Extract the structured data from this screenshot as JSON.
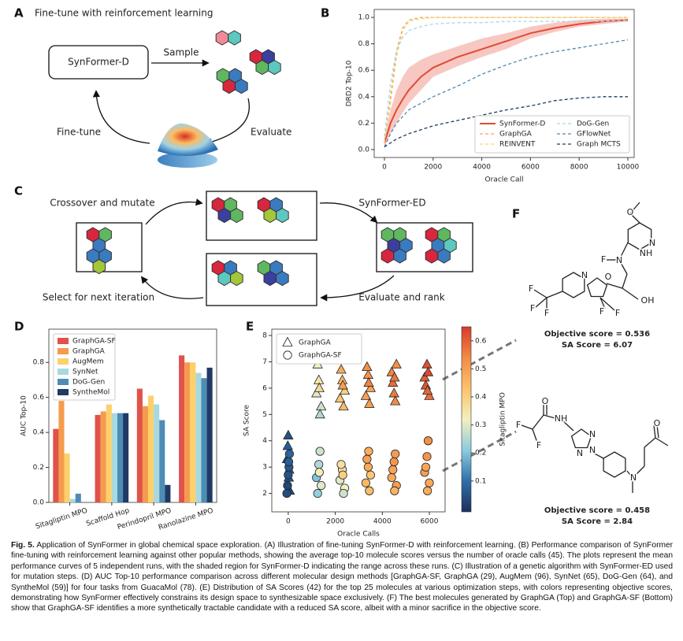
{
  "panels": {
    "A": {
      "label": "A",
      "title": "Fine-tune with reinforcement learning",
      "model": "SynFormer-D",
      "sample": "Sample",
      "evaluate": "Evaluate",
      "finetune": "Fine-tune"
    },
    "C": {
      "label": "C",
      "crossover": "Crossover and mutate",
      "synformer": "SynFormer-ED",
      "evaluate": "Evaluate and rank",
      "select": "Select for next iteration"
    },
    "F": {
      "label": "F",
      "molecules": [
        {
          "atoms": [
            "O",
            "N",
            "NH",
            "F",
            "N",
            "OH",
            "N",
            "O",
            "F",
            "F",
            "F",
            "F",
            "F"
          ],
          "objective": "Objective score = 0.536",
          "sa": "SA Score = 6.07"
        },
        {
          "atoms": [
            "O",
            "NH",
            "F",
            "F",
            "N",
            "N",
            "N",
            "N",
            "O"
          ],
          "objective": "Objective score = 0.458",
          "sa": "SA Score = 2.84"
        }
      ]
    }
  },
  "chart_data": [
    {
      "type": "line",
      "panel": "B",
      "xlabel": "Oracle Call",
      "ylabel": "DRD2 Top-10",
      "x": [
        0,
        250,
        500,
        750,
        1000,
        1500,
        2000,
        3000,
        4000,
        5000,
        6000,
        7000,
        8000,
        9000,
        10000
      ],
      "xlim": [
        -420,
        10260
      ],
      "xticks": [
        0,
        2000,
        4000,
        6000,
        8000,
        10000
      ],
      "ylim": [
        -0.06,
        1.06
      ],
      "yticks": [
        {
          "value": 0,
          "label": "0.0"
        },
        0.2,
        0.4,
        0.6,
        0.8,
        {
          "value": 1,
          "label": "1.0"
        }
      ],
      "legend": "lower right",
      "series": [
        {
          "name": "SynFormer-D",
          "color": "#e34a33",
          "dashed": false,
          "values": [
            0.05,
            0.2,
            0.3,
            0.38,
            0.45,
            0.55,
            0.62,
            0.7,
            0.76,
            0.82,
            0.88,
            0.92,
            0.95,
            0.97,
            0.98
          ],
          "lower": [
            0.02,
            0.12,
            0.2,
            0.28,
            0.35,
            0.45,
            0.55,
            0.63,
            0.7,
            0.76,
            0.84,
            0.89,
            0.93,
            0.95,
            0.97
          ],
          "upper": [
            0.1,
            0.3,
            0.45,
            0.55,
            0.62,
            0.68,
            0.72,
            0.78,
            0.84,
            0.88,
            0.93,
            0.96,
            0.98,
            0.99,
            0.99
          ]
        },
        {
          "name": "GraphGA",
          "color": "#f4a261",
          "dashed": true,
          "values": [
            0.05,
            0.4,
            0.75,
            0.92,
            0.98,
            1.0,
            1.0,
            1.0,
            1.0,
            1.0,
            1.0,
            1.0,
            1.0,
            1.0,
            1.0
          ]
        },
        {
          "name": "REINVENT",
          "color": "#f6d36b",
          "dashed": true,
          "values": [
            0.05,
            0.35,
            0.7,
            0.9,
            0.97,
            0.99,
            1.0,
            1.0,
            1.0,
            1.0,
            1.0,
            1.0,
            1.0,
            1.0,
            1.0
          ]
        },
        {
          "name": "DoG-Gen",
          "color": "#a6d9e0",
          "dashed": true,
          "values": [
            0.1,
            0.5,
            0.75,
            0.85,
            0.9,
            0.93,
            0.95,
            0.96,
            0.96,
            0.97,
            0.97,
            0.97,
            0.97,
            0.97,
            0.98
          ]
        },
        {
          "name": "GFlowNet",
          "color": "#4a8bb5",
          "dashed": true,
          "values": [
            0.02,
            0.12,
            0.2,
            0.25,
            0.3,
            0.35,
            0.4,
            0.48,
            0.57,
            0.64,
            0.7,
            0.74,
            0.77,
            0.8,
            0.83
          ]
        },
        {
          "name": "Graph MCTS",
          "color": "#1d3a60",
          "dashed": true,
          "values": [
            0.02,
            0.05,
            0.08,
            0.1,
            0.12,
            0.15,
            0.18,
            0.22,
            0.26,
            0.3,
            0.33,
            0.37,
            0.39,
            0.4,
            0.4
          ]
        }
      ]
    },
    {
      "type": "bar",
      "panel": "D",
      "ylabel": "AUC Top-10",
      "categories": [
        "Sitagliptin MPO",
        "Scaffold Hop",
        "Perindopril MPO",
        "Ranolazine MPO"
      ],
      "ylim": [
        0,
        0.99
      ],
      "yticks": [
        {
          "value": 0,
          "label": "0.0"
        },
        0.2,
        0.4,
        0.6,
        0.8
      ],
      "legend": "upper left",
      "series": [
        {
          "name": "GraphGA-SF",
          "color": "#e0524a",
          "values": [
            0.42,
            0.5,
            0.65,
            0.84
          ]
        },
        {
          "name": "GraphGA",
          "color": "#f59b4d",
          "values": [
            0.58,
            0.52,
            0.55,
            0.8
          ]
        },
        {
          "name": "AugMem",
          "color": "#fdd06b",
          "values": [
            0.28,
            0.56,
            0.61,
            0.8
          ]
        },
        {
          "name": "SynNet",
          "color": "#a8d8e0",
          "values": [
            0.02,
            0.51,
            0.56,
            0.74
          ]
        },
        {
          "name": "DoG-Gen",
          "color": "#4d8db5",
          "values": [
            0.05,
            0.51,
            0.47,
            0.71
          ]
        },
        {
          "name": "SyntheMol",
          "color": "#1f3b63",
          "values": [
            null,
            0.51,
            0.1,
            0.77
          ]
        }
      ]
    },
    {
      "type": "scatter",
      "panel": "E",
      "xlabel": "Oracle Calls",
      "ylabel": "SA Score",
      "clabel": "Sitagliptin MPO",
      "xlim": [
        -700,
        6670
      ],
      "xticks": [
        0,
        2000,
        4000,
        6000
      ],
      "ylim": [
        1.3,
        8.24
      ],
      "yticks": [
        2,
        3,
        4,
        5,
        6,
        7,
        8
      ],
      "clim": [
        -0.01,
        0.65
      ],
      "cticks": [
        0.1,
        0.2,
        0.3,
        0.4,
        0.5,
        0.6
      ],
      "cmap": [
        "#1b2f5e",
        "#2f6fa8",
        "#8ccbe0",
        "#f2f0c0",
        "#fdc26a",
        "#f28b45",
        "#d83a2e"
      ],
      "legend": "upper left",
      "series": [
        {
          "name": "GraphGA",
          "marker": "triangle",
          "x": [
            -50,
            20,
            60,
            -20,
            40,
            0,
            1200,
            1300,
            1400,
            1250,
            1350,
            1320,
            2200,
            2300,
            2400,
            2250,
            2350,
            2320,
            3300,
            3400,
            3500,
            3350,
            3450,
            3420,
            4400,
            4500,
            4600,
            4450,
            4550,
            4520,
            5800,
            5900,
            6000,
            5850,
            5950,
            5920
          ],
          "values": [
            3.3,
            2.6,
            2.1,
            3.8,
            2.9,
            4.2,
            5.8,
            6.3,
            5.3,
            6.9,
            5.0,
            6.0,
            5.6,
            6.3,
            5.9,
            6.7,
            5.3,
            6.1,
            5.7,
            6.5,
            6.0,
            6.8,
            5.4,
            6.2,
            6.6,
            5.8,
            6.9,
            6.2,
            5.5,
            6.4,
            6.4,
            6.9,
            5.7,
            6.1,
            6.6,
            5.9
          ],
          "colors": [
            0.05,
            0.06,
            0.04,
            0.07,
            0.08,
            0.05,
            0.3,
            0.35,
            0.28,
            0.32,
            0.25,
            0.38,
            0.42,
            0.45,
            0.4,
            0.48,
            0.44,
            0.5,
            0.5,
            0.52,
            0.49,
            0.53,
            0.5,
            0.55,
            0.55,
            0.56,
            0.53,
            0.58,
            0.54,
            0.57,
            0.6,
            0.62,
            0.58,
            0.61,
            0.63,
            0.59
          ]
        },
        {
          "name": "GraphGA-SF",
          "marker": "circle",
          "x": [
            -30,
            30,
            0,
            50,
            -60,
            20,
            1200,
            1300,
            1400,
            1250,
            1350,
            1320,
            2200,
            2300,
            2400,
            2250,
            2350,
            2320,
            3300,
            3400,
            3500,
            3350,
            3450,
            3420,
            4400,
            4500,
            4600,
            4450,
            4550,
            4520,
            5800,
            5900,
            6000,
            5850,
            5950,
            5920
          ],
          "values": [
            2.3,
            3.0,
            2.7,
            3.5,
            2.0,
            3.2,
            2.6,
            3.1,
            2.3,
            2.0,
            3.6,
            2.8,
            2.5,
            2.9,
            2.2,
            3.1,
            2.0,
            2.7,
            2.4,
            3.0,
            2.7,
            3.3,
            2.1,
            3.6,
            2.6,
            3.2,
            2.3,
            2.9,
            3.5,
            2.1,
            2.8,
            3.4,
            2.4,
            3.0,
            4.0,
            2.1
          ],
          "colors": [
            0.03,
            0.06,
            0.05,
            0.08,
            0.04,
            0.07,
            0.2,
            0.25,
            0.3,
            0.22,
            0.28,
            0.33,
            0.3,
            0.35,
            0.32,
            0.36,
            0.28,
            0.4,
            0.45,
            0.48,
            0.42,
            0.5,
            0.44,
            0.47,
            0.48,
            0.52,
            0.5,
            0.49,
            0.51,
            0.46,
            0.5,
            0.52,
            0.48,
            0.49,
            0.53,
            0.47
          ]
        }
      ]
    }
  ],
  "caption": {
    "label": "Fig. 5.",
    "text": "Application of SynFormer in global chemical space exploration. (A) Illustration of fine-tuning SynFormer-D with reinforcement learning. (B) Performance comparison of SynFormer fine-tuning with reinforcement learning against other popular methods, showing the average top-10 molecule scores versus the number of oracle calls (45). The plots represent the mean performance curves of 5 independent runs, with the shaded region for SynFormer-D indicating the range across these runs. (C) Illustration of a genetic algorithm with SynFormer-ED used for mutation steps. (D) AUC Top-10 performance comparison across different molecular design methods [GraphGA-SF, GraphGA (29), AugMem (96), SynNet (65), DoG-Gen (64), and SyntheMol (59)] for four tasks from GuacaMol (78). (E) Distribution of SA Scores (42) for the top 25 molecules at various optimization steps, with colors representing objective scores, demonstrating how SynFormer effectively constrains its design space to synthesizable space exclusively. (F) The best molecules generated by GraphGA (Top) and GraphGA-SF (Bottom) show that GraphGA-SF identifies a more synthetically tractable candidate with a reduced SA score, albeit with a minor sacrifice in the objective score."
  }
}
